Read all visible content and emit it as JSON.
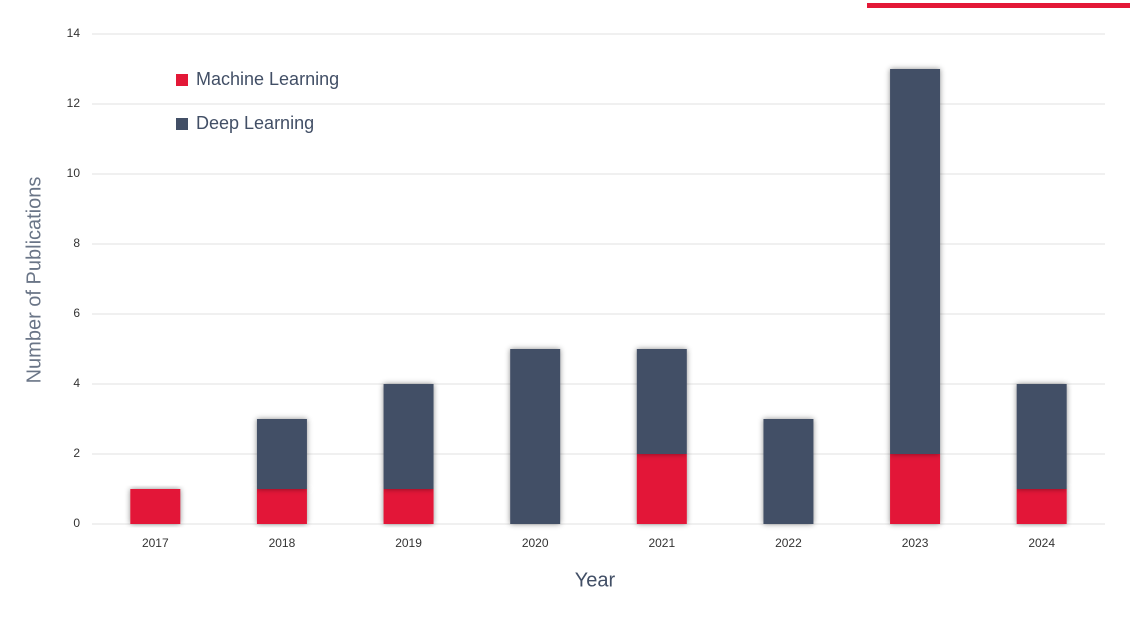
{
  "chart_data": {
    "type": "bar",
    "stacked": true,
    "x_label": "Year",
    "y_label": "Number of Publications",
    "categories": [
      "2017",
      "2018",
      "2019",
      "2020",
      "2021",
      "2022",
      "2023",
      "2024"
    ],
    "series": [
      {
        "name": "Machine Learning",
        "color": "#e31837",
        "values": [
          1,
          1,
          1,
          0,
          2,
          0,
          2,
          1
        ]
      },
      {
        "name": "Deep Learning",
        "color": "#424f66",
        "values": [
          0,
          2,
          3,
          5,
          3,
          3,
          11,
          3
        ]
      }
    ],
    "ylim": [
      0,
      14
    ],
    "yticks": [
      0,
      2,
      4,
      6,
      8,
      10,
      12,
      14
    ],
    "grid": true,
    "legend": "upper left"
  }
}
